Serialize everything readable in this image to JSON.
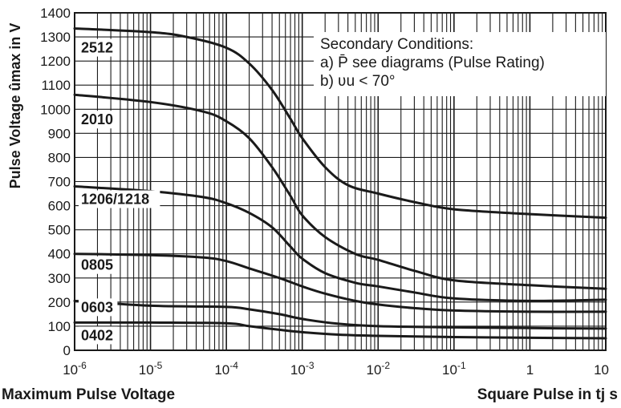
{
  "chart_data": {
    "type": "line",
    "title": "",
    "xlabel": "Square Pulse in tj s",
    "ylabel": "Pulse Voltage ûmax in V",
    "footer_left": "Maximum Pulse Voltage",
    "footer_right": "Square Pulse in tj s",
    "x_scale": "log",
    "xlim": [
      1e-06,
      10
    ],
    "ylim": [
      0,
      1400
    ],
    "grid": true,
    "legend": "none (series labeled on chart)",
    "x_ticks": [
      {
        "value": 1e-06,
        "base": "10",
        "exp": "-6"
      },
      {
        "value": 1e-05,
        "base": "10",
        "exp": "-5"
      },
      {
        "value": 0.0001,
        "base": "10",
        "exp": "-4"
      },
      {
        "value": 0.001,
        "base": "10",
        "exp": "-3"
      },
      {
        "value": 0.01,
        "base": "10",
        "exp": "-2"
      },
      {
        "value": 0.1,
        "base": "10",
        "exp": "-1"
      },
      {
        "value": 1,
        "base": "1",
        "exp": ""
      },
      {
        "value": 10,
        "base": "10",
        "exp": ""
      }
    ],
    "y_ticks": [
      0,
      100,
      200,
      300,
      400,
      500,
      600,
      700,
      800,
      900,
      1000,
      1100,
      1200,
      1300,
      1400
    ],
    "notes": {
      "heading": "Secondary Conditions:",
      "line_a": "a) P̄ see diagrams (Pulse Rating)",
      "line_b": "b) ʋu < 70°"
    },
    "series": [
      {
        "name": "2512",
        "points": [
          [
            1e-06,
            1335
          ],
          [
            1e-05,
            1320
          ],
          [
            3e-05,
            1300
          ],
          [
            0.0001,
            1255
          ],
          [
            0.0002,
            1190
          ],
          [
            0.0004,
            1080
          ],
          [
            0.0007,
            960
          ],
          [
            0.001,
            880
          ],
          [
            0.002,
            760
          ],
          [
            0.004,
            685
          ],
          [
            0.01,
            650
          ],
          [
            0.03,
            615
          ],
          [
            0.1,
            585
          ],
          [
            1,
            565
          ],
          [
            10,
            550
          ]
        ]
      },
      {
        "name": "2010",
        "points": [
          [
            1e-06,
            1060
          ],
          [
            1e-05,
            1030
          ],
          [
            5e-05,
            990
          ],
          [
            0.0001,
            950
          ],
          [
            0.0002,
            880
          ],
          [
            0.0004,
            760
          ],
          [
            0.0007,
            640
          ],
          [
            0.001,
            560
          ],
          [
            0.002,
            470
          ],
          [
            0.005,
            400
          ],
          [
            0.01,
            375
          ],
          [
            0.03,
            330
          ],
          [
            0.1,
            290
          ],
          [
            1,
            270
          ],
          [
            10,
            255
          ]
        ]
      },
      {
        "name": "1206/1218",
        "points": [
          [
            1e-06,
            680
          ],
          [
            1e-05,
            660
          ],
          [
            5e-05,
            635
          ],
          [
            0.0001,
            610
          ],
          [
            0.0002,
            570
          ],
          [
            0.0004,
            510
          ],
          [
            0.0007,
            430
          ],
          [
            0.001,
            380
          ],
          [
            0.002,
            320
          ],
          [
            0.005,
            280
          ],
          [
            0.01,
            265
          ],
          [
            0.03,
            240
          ],
          [
            0.1,
            215
          ],
          [
            1,
            205
          ],
          [
            10,
            210
          ]
        ]
      },
      {
        "name": "0805",
        "points": [
          [
            1e-06,
            400
          ],
          [
            1e-05,
            395
          ],
          [
            5e-05,
            385
          ],
          [
            0.0001,
            370
          ],
          [
            0.0002,
            340
          ],
          [
            0.0005,
            300
          ],
          [
            0.001,
            265
          ],
          [
            0.002,
            235
          ],
          [
            0.005,
            205
          ],
          [
            0.01,
            190
          ],
          [
            0.03,
            175
          ],
          [
            0.1,
            165
          ],
          [
            1,
            160
          ],
          [
            10,
            160
          ]
        ]
      },
      {
        "name": "0603",
        "points": [
          [
            1e-06,
            205
          ],
          [
            1e-05,
            185
          ],
          [
            0.0001,
            180
          ],
          [
            0.0002,
            170
          ],
          [
            0.0005,
            150
          ],
          [
            0.001,
            130
          ],
          [
            0.003,
            110
          ],
          [
            0.01,
            100
          ],
          [
            0.1,
            95
          ],
          [
            1,
            92
          ],
          [
            10,
            90
          ]
        ]
      },
      {
        "name": "0402",
        "points": [
          [
            1e-06,
            115
          ],
          [
            1e-05,
            115
          ],
          [
            0.0001,
            112
          ],
          [
            0.0002,
            100
          ],
          [
            0.0005,
            85
          ],
          [
            0.001,
            75
          ],
          [
            0.003,
            65
          ],
          [
            0.01,
            60
          ],
          [
            0.1,
            55
          ],
          [
            1,
            52
          ],
          [
            10,
            50
          ]
        ]
      }
    ]
  }
}
